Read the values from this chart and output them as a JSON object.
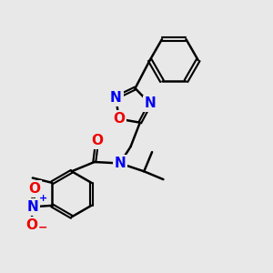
{
  "bg_color": "#e8e8e8",
  "bond_color": "#000000",
  "bond_width": 1.8,
  "atom_colors": {
    "N": "#0000ee",
    "O": "#ee0000",
    "C": "#000000"
  },
  "font_size_atom": 11,
  "figsize": [
    3.0,
    3.0
  ],
  "dpi": 100
}
